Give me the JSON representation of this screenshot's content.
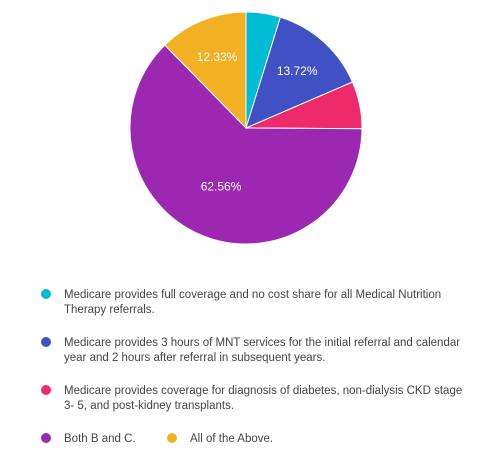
{
  "chart_data": {
    "type": "pie",
    "slices": [
      {
        "label": "Medicare provides full coverage and no cost share for all Medical Nutrition Therapy referrals.",
        "value": 4.79,
        "color": "#00bcd4",
        "value_label": ""
      },
      {
        "label": "Medicare provides 3 hours of MNT services for the initial referral and calendar year and 2 hours after referral in subsequent years.",
        "value": 13.72,
        "color": "#3f51c4",
        "value_label": "13.72%"
      },
      {
        "label": "Medicare provides coverage for diagnosis of diabetes, non-dialysis CKD stage 3- 5, and post-kidney transplants.",
        "value": 6.6,
        "color": "#ee2a6b",
        "value_label": ""
      },
      {
        "label": "Both B and C.",
        "value": 62.56,
        "color": "#9c27b0",
        "value_label": "62.56%"
      },
      {
        "label": "All of the Above.",
        "value": 12.33,
        "color": "#f3b022",
        "value_label": "12.33%"
      }
    ],
    "legend_position": "bottom"
  }
}
